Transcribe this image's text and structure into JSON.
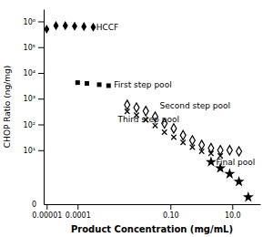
{
  "chart_data": {
    "type": "scatter",
    "xlabel": "Product Concentration (mg/mL)",
    "ylabel": "CHOP Ratio (ng/mg)",
    "log": true,
    "grid": false,
    "xlim": [
      8e-06,
      80
    ],
    "ylim": [
      0.08,
      3000000
    ],
    "xticks": [
      {
        "value": 1e-05,
        "label": "0.00001"
      },
      {
        "value": 0.0001,
        "label": "0.0001"
      },
      {
        "value": 0.1,
        "label": "0.10"
      },
      {
        "value": 10,
        "label": "10.0"
      }
    ],
    "yticks": [
      {
        "value": 10,
        "label": "10¹"
      },
      {
        "value": 100,
        "label": "10²"
      },
      {
        "value": 1000,
        "label": "10³"
      },
      {
        "value": 10000,
        "label": "10⁴"
      },
      {
        "value": 100000,
        "label": "10⁵"
      },
      {
        "value": 1000000,
        "label": "10⁶"
      }
    ],
    "series": [
      {
        "x": [
          1e-05,
          2e-05,
          4e-05,
          8e-05,
          0.00016,
          0.00032
        ],
        "values": [
          500000.0,
          680000.0,
          680000.0,
          650000.0,
          630000.0,
          600000.0
        ],
        "marker": "diamond",
        "color": "black"
      },
      {
        "x": [
          0.0001,
          0.0002,
          0.0005,
          0.001
        ],
        "values": [
          4200,
          3900,
          3500,
          3200
        ],
        "marker": "square",
        "color": "black"
      },
      {
        "x": [
          0.004,
          0.008,
          0.016,
          0.032,
          0.064,
          0.128,
          0.256,
          0.512,
          1.024,
          2.048,
          4.096,
          8.192,
          16.384
        ],
        "values": [
          580,
          450,
          330,
          200,
          110,
          70,
          38,
          24,
          16,
          12,
          10,
          10,
          9
        ],
        "marker": "diamond-open",
        "color": "black"
      },
      {
        "x": [
          0.004,
          0.008,
          0.016,
          0.032,
          0.064,
          0.128,
          0.256,
          0.512,
          1.024,
          2.048,
          4.096
        ],
        "values": [
          320,
          230,
          150,
          90,
          50,
          32,
          20,
          13,
          9,
          7.5,
          6
        ],
        "marker": "x",
        "color": "black"
      },
      {
        "x": [
          2.048,
          4.096,
          8.192,
          16.384,
          32.768
        ],
        "values": [
          3.5,
          2.0,
          1.2,
          0.6,
          0.15
        ],
        "marker": "star",
        "color": "black"
      }
    ],
    "annotations": [
      {
        "text": "HCCF",
        "x": 0.0004,
        "y": 580000.0
      },
      {
        "text": "First step pool",
        "x": 0.0015,
        "y": 3200
      },
      {
        "text": "Second step pool",
        "x": 0.045,
        "y": 520
      },
      {
        "text": "Third step pool",
        "x": 0.002,
        "y": 145
      },
      {
        "text": "Final pool",
        "x": 3.0,
        "y": 3.2
      },
      {
        "text": "0",
        "x": 8e-06,
        "y": 0.08
      }
    ]
  }
}
